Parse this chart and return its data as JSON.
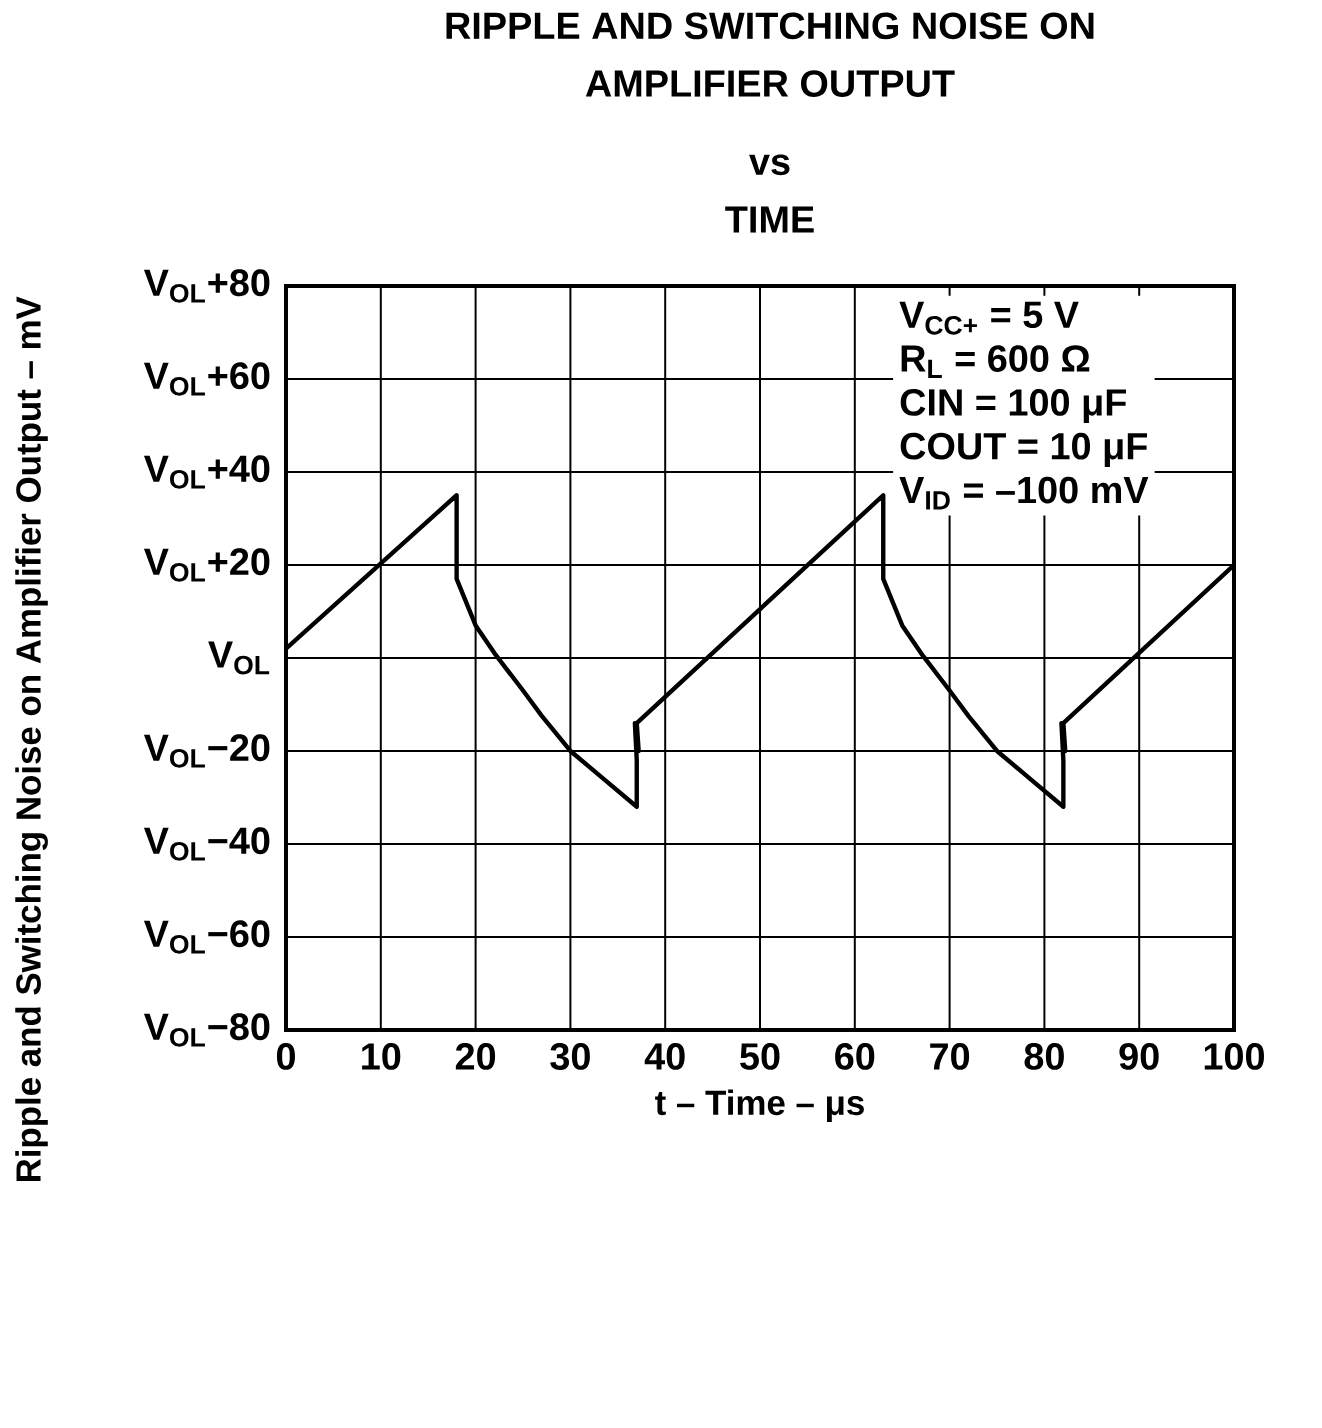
{
  "chart_data": {
    "type": "line",
    "title": "RIPPLE AND SWITCHING NOISE ON AMPLIFIER OUTPUT",
    "subtitle": "vs TIME",
    "xlabel": "t – Time – μs",
    "ylabel": "Ripple and Switching Noise on Amplifier Output – mV",
    "annotations": [
      "V$_{CC+}$ = 5 V",
      "R$_{L}$ = 600 Ω",
      "CIN = 100 μF",
      "COUT = 10 μF",
      "V$_{ID}$ = –100 mV"
    ],
    "x": [
      0,
      18,
      18,
      20,
      22,
      25,
      27,
      30,
      33.5,
      37,
      37,
      36.8,
      37.2,
      37,
      63,
      63,
      65,
      67,
      70,
      72,
      75,
      78.5,
      82,
      82,
      81.8,
      82.2,
      82,
      100
    ],
    "series": [
      {
        "color": "#000000",
        "values": [
          2,
          35,
          17,
          7,
          1,
          -7,
          -12.5,
          -20,
          -26,
          -32,
          -22,
          -14,
          -20,
          -14,
          35,
          17,
          7,
          1,
          -7,
          -12.5,
          -20,
          -26,
          -32,
          -22,
          -14,
          -20,
          -14,
          20
        ]
      }
    ],
    "xlim": [
      0,
      100
    ],
    "ylim": [
      -80,
      80
    ],
    "xticks": [
      0,
      10,
      20,
      30,
      40,
      50,
      60,
      70,
      80,
      90,
      100
    ],
    "yticks": [
      {
        "value": -80,
        "label": "V$_{OL}$−80"
      },
      {
        "value": -60,
        "label": "V$_{OL}$−60"
      },
      {
        "value": -40,
        "label": "V$_{OL}$−40"
      },
      {
        "value": -20,
        "label": "V$_{OL}$−20"
      },
      {
        "value": 0,
        "label": "V$_{OL}$"
      },
      {
        "value": 20,
        "label": "V$_{OL}$+20"
      },
      {
        "value": 40,
        "label": "V$_{OL}$+40"
      },
      {
        "value": 60,
        "label": "V$_{OL}$+60"
      },
      {
        "value": 80,
        "label": "V$_{OL}$+80"
      }
    ],
    "grid": true
  }
}
